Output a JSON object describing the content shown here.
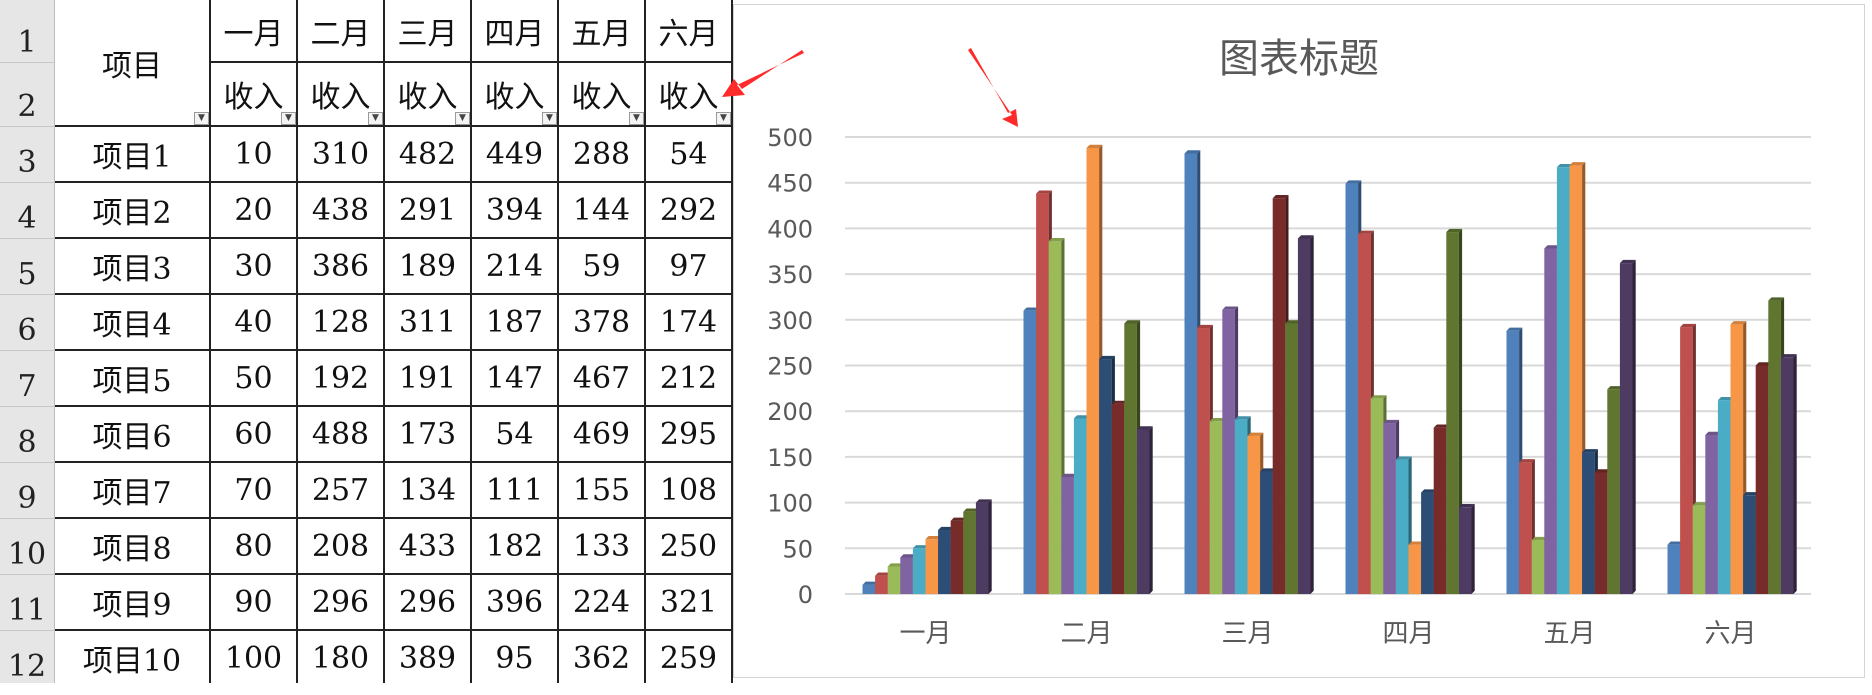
{
  "sheet": {
    "row_numbers": [
      "1",
      "2",
      "3",
      "4",
      "5",
      "6",
      "7",
      "8",
      "9",
      "10",
      "11",
      "12"
    ],
    "item_header": "项目",
    "months": [
      "一月",
      "二月",
      "三月",
      "四月",
      "五月",
      "六月"
    ],
    "sub_header": "收入",
    "items": [
      "项目1",
      "项目2",
      "项目3",
      "项目4",
      "项目5",
      "项目6",
      "项目7",
      "项目8",
      "项目9",
      "项目10"
    ],
    "values": [
      [
        10,
        310,
        482,
        449,
        288,
        54
      ],
      [
        20,
        438,
        291,
        394,
        144,
        292
      ],
      [
        30,
        386,
        189,
        214,
        59,
        97
      ],
      [
        40,
        128,
        311,
        187,
        378,
        174
      ],
      [
        50,
        192,
        191,
        147,
        467,
        212
      ],
      [
        60,
        488,
        173,
        54,
        469,
        295
      ],
      [
        70,
        257,
        134,
        111,
        155,
        108
      ],
      [
        80,
        208,
        433,
        182,
        133,
        250
      ],
      [
        90,
        296,
        296,
        396,
        224,
        321
      ],
      [
        100,
        180,
        389,
        95,
        362,
        259
      ]
    ],
    "filter_icon": "dropdown-arrow-icon"
  },
  "chart_data": {
    "type": "bar",
    "title": "图表标题",
    "categories": [
      "一月",
      "二月",
      "三月",
      "四月",
      "五月",
      "六月"
    ],
    "ylim": [
      0,
      500
    ],
    "yticks": [
      "0",
      "50",
      "100",
      "150",
      "200",
      "250",
      "300",
      "350",
      "400",
      "450",
      "500"
    ],
    "grid": true,
    "colors": [
      "#4f81bd",
      "#c0504d",
      "#9bbb59",
      "#8064a2",
      "#4bacc6",
      "#f79646",
      "#2c4d75",
      "#772c2a",
      "#5f7530",
      "#4d3b62"
    ],
    "series": [
      {
        "values": [
          10,
          310,
          482,
          449,
          288,
          54
        ]
      },
      {
        "values": [
          20,
          438,
          291,
          394,
          144,
          292
        ]
      },
      {
        "values": [
          30,
          386,
          189,
          214,
          59,
          97
        ]
      },
      {
        "values": [
          40,
          128,
          311,
          187,
          378,
          174
        ]
      },
      {
        "values": [
          50,
          192,
          191,
          147,
          467,
          212
        ]
      },
      {
        "values": [
          60,
          488,
          173,
          54,
          469,
          295
        ]
      },
      {
        "values": [
          70,
          257,
          134,
          111,
          155,
          108
        ]
      },
      {
        "values": [
          80,
          208,
          433,
          182,
          133,
          250
        ]
      },
      {
        "values": [
          90,
          296,
          296,
          396,
          224,
          321
        ]
      },
      {
        "values": [
          100,
          180,
          389,
          95,
          362,
          259
        ]
      }
    ]
  },
  "annotations": {
    "arrow_color": "#ff2a2a"
  }
}
